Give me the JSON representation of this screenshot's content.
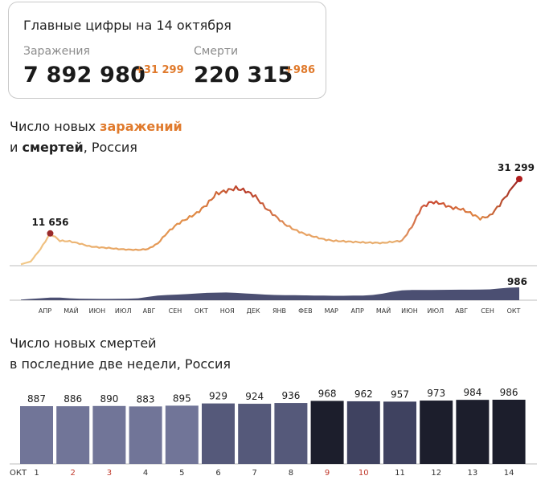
{
  "header": {
    "title": "Главные цифры на 14 октября",
    "infections_label": "Заражения",
    "infections_total": "7 892 980",
    "infections_delta": "+31 299",
    "deaths_label": "Смерти",
    "deaths_total": "220 315",
    "deaths_delta": "+986"
  },
  "section1": {
    "title_prefix": "Число новых ",
    "title_highlight": "заражений",
    "title_line2_pre": "и ",
    "title_line2_bold": "смертей",
    "title_line2_post": ", Россия"
  },
  "section2": {
    "title_line1": "Число новых смертей",
    "title_line2": "в последние две недели, Россия"
  },
  "colors": {
    "accent": "#e07a2c",
    "peak_marker": "#8c1f1f",
    "deaths_area": "#4b4f72"
  },
  "chart_data": [
    {
      "type": "line",
      "title": "Число новых заражений и смертей, Россия",
      "x_ticks": [
        "АПР",
        "МАЙ",
        "ИЮН",
        "ИЮЛ",
        "АВГ",
        "СЕН",
        "ОКТ",
        "НОЯ",
        "ДЕК",
        "ЯНВ",
        "ФЕВ",
        "МАР",
        "АПР",
        "МАЙ",
        "ИЮН",
        "ИЮЛ",
        "АВГ",
        "СЕН",
        "ОКТ"
      ],
      "series": [
        {
          "values": [
            500,
            1500,
            6000,
            11656,
            9000,
            8800,
            8000,
            7000,
            6600,
            6400,
            6000,
            5800,
            5700,
            6000,
            8000,
            12000,
            15000,
            17000,
            19000,
            22000,
            26000,
            27000,
            28000,
            27000,
            25000,
            21000,
            18000,
            15000,
            13000,
            11500,
            10500,
            9500,
            9000,
            8800,
            8600,
            8400,
            8300,
            8200,
            8600,
            9000,
            14000,
            21000,
            23000,
            22500,
            21000,
            20500,
            19000,
            17000,
            18000,
            22000,
            27000,
            31299
          ],
          "annotations": [
            {
              "label": "11 656",
              "value": 11656
            },
            {
              "label": "31 299",
              "value": 31299
            }
          ]
        },
        {
          "values": [
            50,
            100,
            150,
            200,
            200,
            150,
            120,
            110,
            100,
            100,
            110,
            120,
            150,
            250,
            350,
            400,
            430,
            470,
            520,
            560,
            580,
            590,
            560,
            520,
            480,
            430,
            400,
            390,
            380,
            370,
            360,
            350,
            340,
            340,
            350,
            360,
            400,
            500,
            650,
            750,
            780,
            790,
            790,
            795,
            800,
            805,
            810,
            815,
            830,
            900,
            960,
            986
          ],
          "annotations": [
            {
              "label": "986",
              "value": 986
            }
          ]
        }
      ]
    },
    {
      "type": "bar",
      "title": "Число новых смертей в последние две недели, Россия",
      "month_label": "ОКТ",
      "categories": [
        "1",
        "2",
        "3",
        "4",
        "5",
        "6",
        "7",
        "8",
        "9",
        "10",
        "11",
        "12",
        "13",
        "14"
      ],
      "values": [
        887,
        886,
        890,
        883,
        895,
        929,
        924,
        936,
        968,
        962,
        957,
        973,
        984,
        986
      ],
      "weekend": [
        false,
        true,
        true,
        false,
        false,
        false,
        false,
        false,
        true,
        true,
        false,
        false,
        false,
        false
      ],
      "bar_colors": [
        "#717598",
        "#717598",
        "#717598",
        "#717598",
        "#717598",
        "#55597a",
        "#55597a",
        "#55597a",
        "#1c1e2c",
        "#3f4260",
        "#3f4260",
        "#1c1e2c",
        "#1c1e2c",
        "#1c1e2c"
      ]
    }
  ]
}
